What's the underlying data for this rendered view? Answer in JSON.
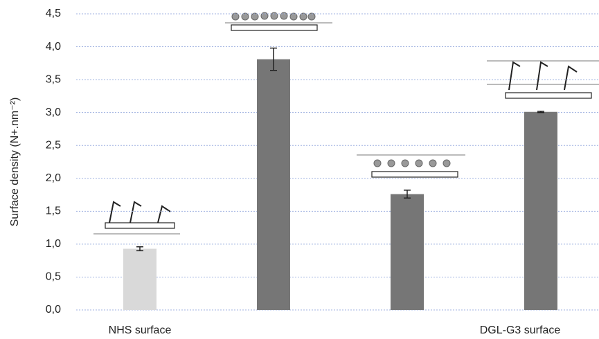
{
  "chart_data": {
    "type": "bar",
    "y_label": "Surface density (N+.nm⁻²)",
    "categories": [
      "NHS surface",
      null,
      null,
      "DGL-G3 surface"
    ],
    "values": [
      0.93,
      3.81,
      1.76,
      3.01
    ],
    "errors": [
      0.03,
      0.17,
      0.06,
      0.01
    ],
    "colors": [
      "#d9d9d9",
      "#767676",
      "#767676",
      "#767676"
    ],
    "ylim": [
      0,
      4.5
    ],
    "yticks": [
      {
        "value": 0,
        "label": "0,0"
      },
      {
        "value": 0.5,
        "label": "0,5"
      },
      {
        "value": 1,
        "label": "1,0"
      },
      {
        "value": 1.5,
        "label": "1,5"
      },
      {
        "value": 2,
        "label": "2,0"
      },
      {
        "value": 2.5,
        "label": "2,5"
      },
      {
        "value": 3,
        "label": "3,0"
      },
      {
        "value": 3.5,
        "label": "3,5"
      },
      {
        "value": 4,
        "label": "4,0"
      },
      {
        "value": 4.5,
        "label": "4,5"
      }
    ],
    "grid": true
  }
}
